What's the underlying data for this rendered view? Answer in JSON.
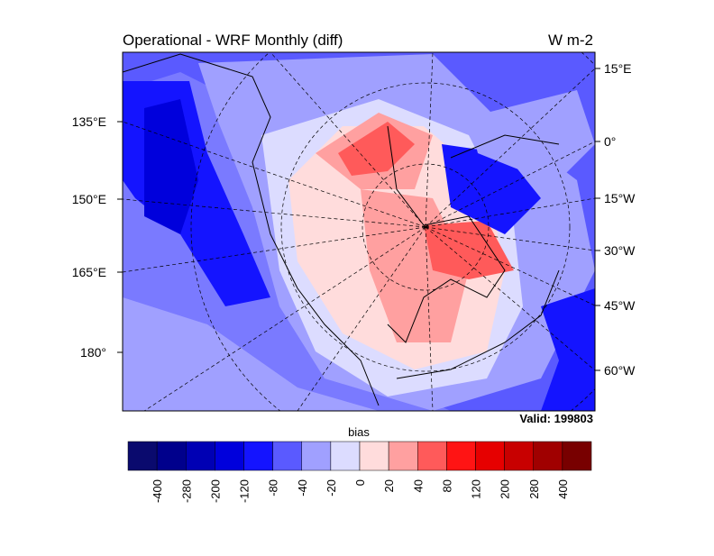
{
  "title": "Operational - WRF Monthly (diff)",
  "units": "W m-2",
  "valid": "Valid: 199803",
  "left_lon_labels": [
    "135°E",
    "150°E",
    "165°E",
    "180°"
  ],
  "right_lon_labels": [
    "15°E",
    "0°",
    "15°W",
    "30°W",
    "45°W",
    "60°W"
  ],
  "colorbar": {
    "title": "bias",
    "levels": [
      -400,
      -280,
      -200,
      -120,
      -80,
      -40,
      -20,
      0,
      20,
      40,
      80,
      120,
      200,
      280,
      400
    ],
    "colors": [
      "#0a0a6e",
      "#00008c",
      "#0000b4",
      "#0000dc",
      "#1414ff",
      "#5a5aff",
      "#a0a0ff",
      "#dcdcff",
      "#ffdcdc",
      "#ffa0a0",
      "#ff5a5a",
      "#ff1414",
      "#e60000",
      "#c80000",
      "#a00000",
      "#780000"
    ]
  }
}
